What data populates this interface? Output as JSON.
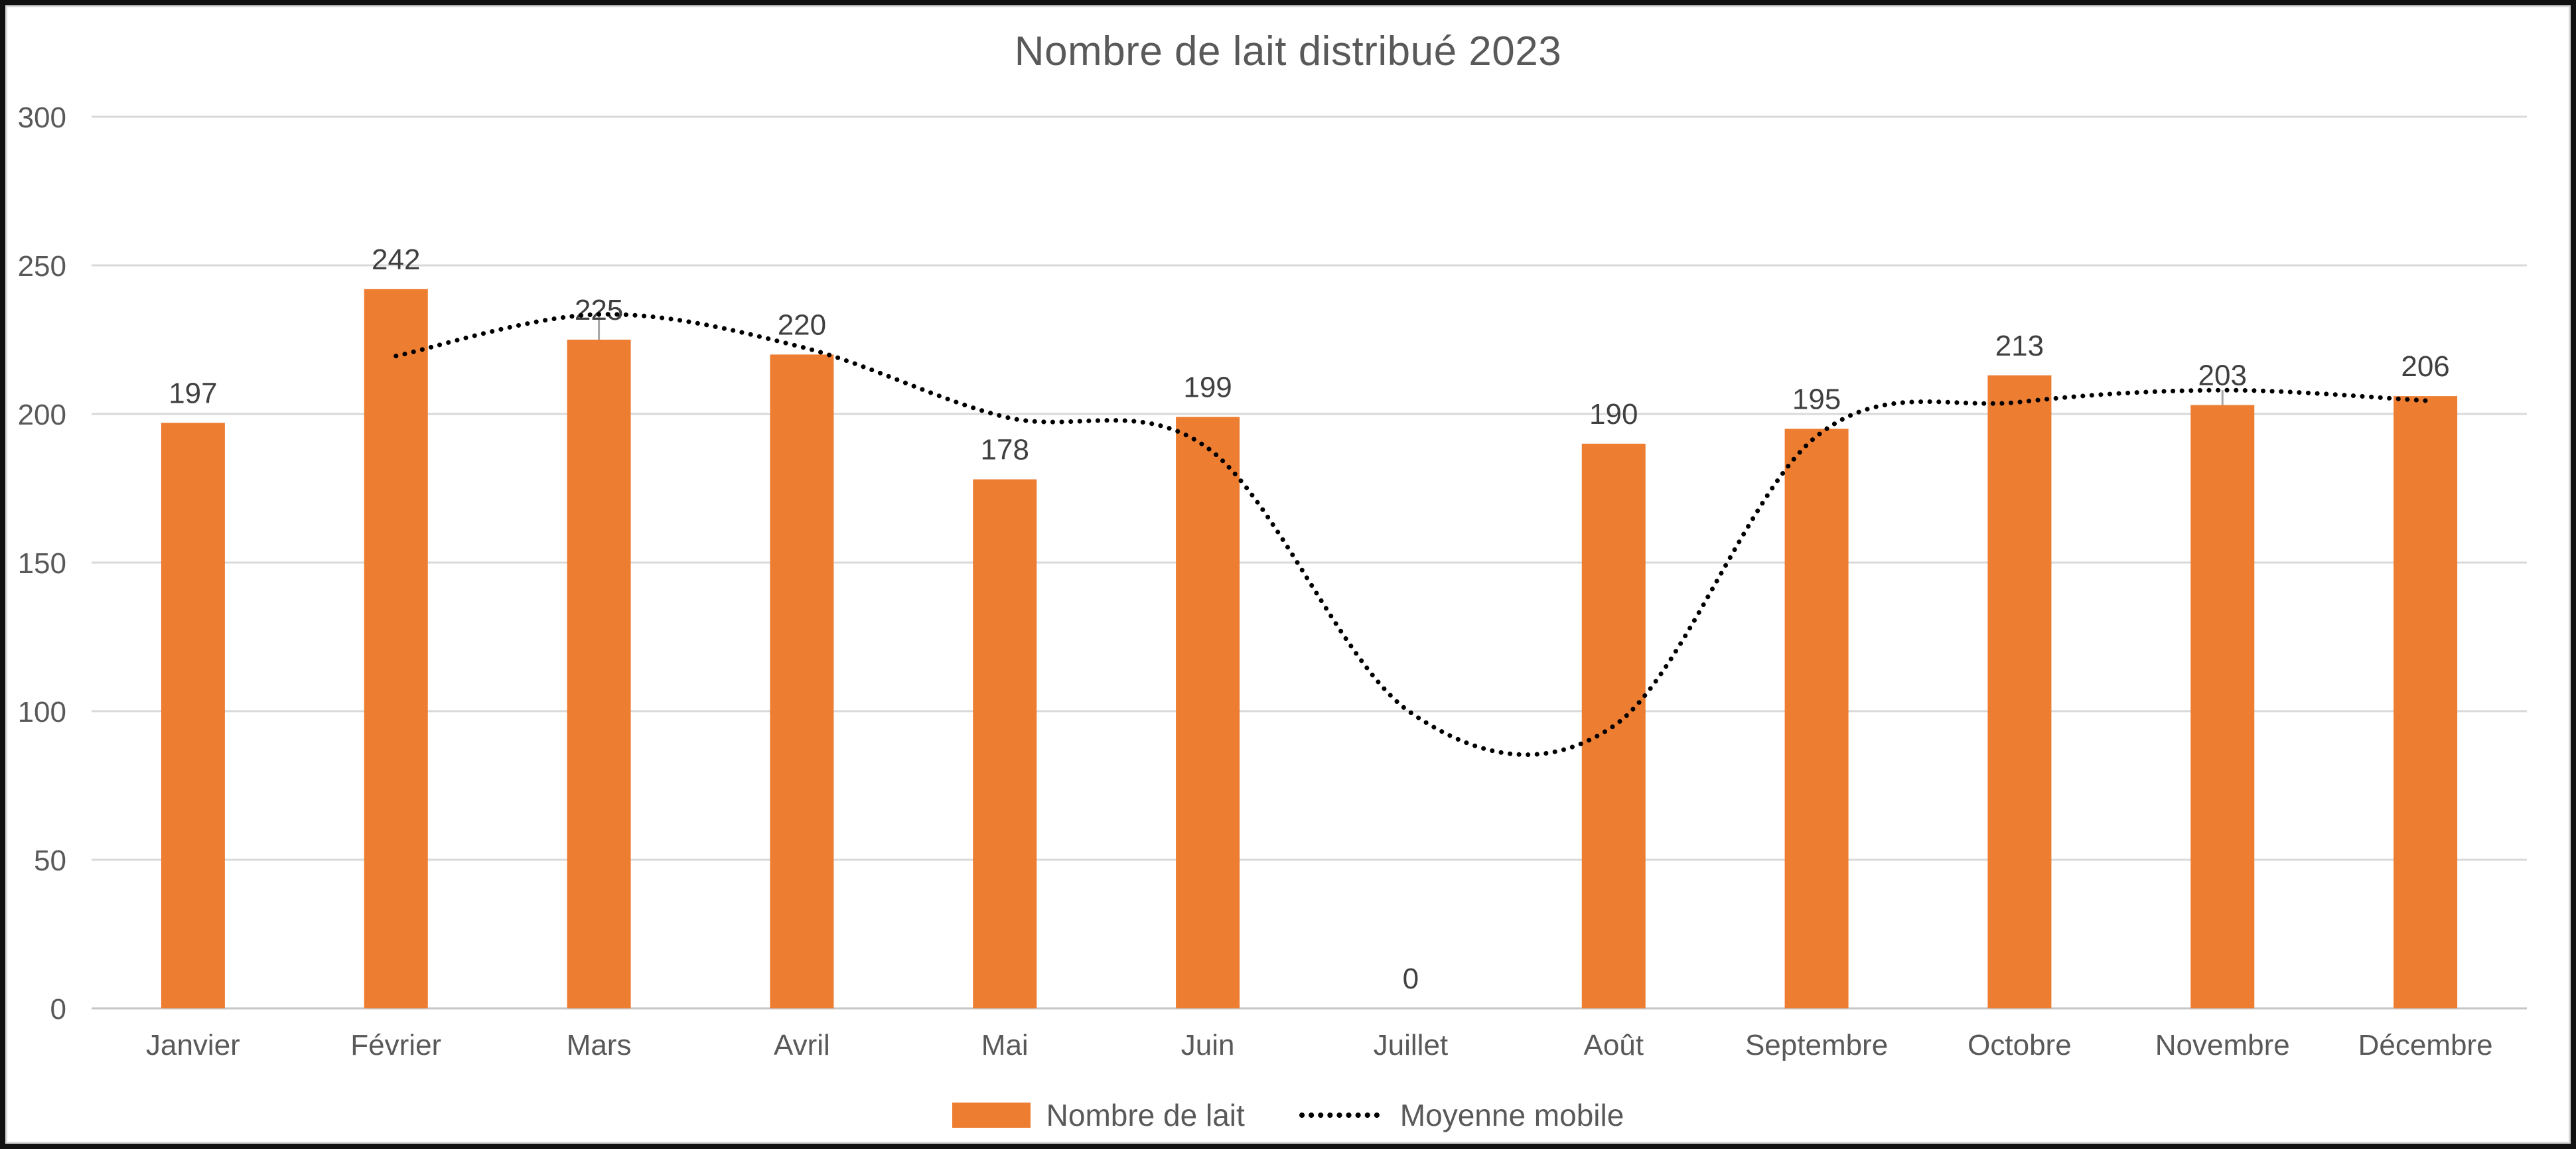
{
  "title": "Nombre de lait distribué 2023",
  "legend": {
    "bar_label": "Nombre de lait",
    "line_label": "Moyenne mobile"
  },
  "colors": {
    "bar": "#ED7D31",
    "line": "#000000",
    "grid": "#D9D9D9",
    "axis_line": "#C6C6C6",
    "tick_text": "#595959",
    "data_label_text": "#404040",
    "title_text": "#595959",
    "connector": "#A6A6A6",
    "frame": "#111111"
  },
  "chart_data": {
    "type": "bar",
    "title": "Nombre de lait distribué 2023",
    "categories": [
      "Janvier",
      "Février",
      "Mars",
      "Avril",
      "Mai",
      "Juin",
      "Juillet",
      "Août",
      "Septembre",
      "Octobre",
      "Novembre",
      "Décembre"
    ],
    "series": [
      {
        "name": "Nombre de lait",
        "type": "bar",
        "color": "#ED7D31",
        "values": [
          197,
          242,
          225,
          220,
          178,
          199,
          0,
          190,
          195,
          213,
          203,
          206
        ],
        "data_labels": true
      },
      {
        "name": "Moyenne mobile",
        "type": "line",
        "style": "dotted",
        "smooth": true,
        "color": "#000000",
        "values": [
          null,
          219.5,
          233.5,
          222.5,
          199,
          188.5,
          99.5,
          95,
          192.5,
          204,
          208,
          204.5
        ]
      }
    ],
    "xlabel": "",
    "ylabel": "",
    "ylim": [
      0,
      300
    ],
    "yticks": [
      0,
      50,
      100,
      150,
      200,
      250,
      300
    ],
    "grid": true,
    "legend_position": "bottom",
    "connectors": [
      {
        "category": "Mars",
        "from": 233.5,
        "to": 225
      },
      {
        "category": "Novembre",
        "from": 208,
        "to": 203
      }
    ]
  }
}
